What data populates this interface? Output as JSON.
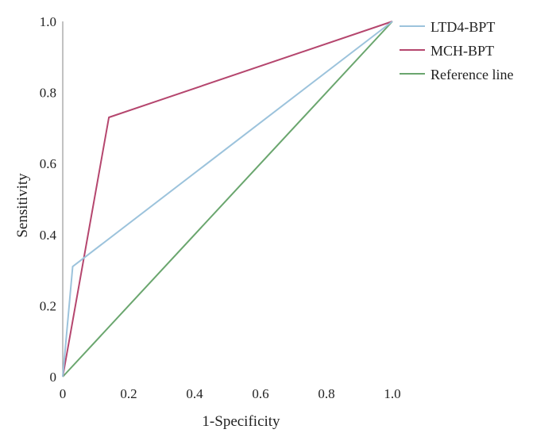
{
  "chart_data": {
    "type": "line",
    "xlabel": "1-Specificity",
    "ylabel": "Sensitivity",
    "xlim": [
      0,
      1
    ],
    "ylim": [
      0,
      1
    ],
    "x_ticks": [
      "0",
      "0.2",
      "0.4",
      "0.6",
      "0.8",
      "1.0"
    ],
    "y_ticks": [
      "0",
      "0.2",
      "0.4",
      "0.6",
      "0.8",
      "1.0"
    ],
    "grid": false,
    "legend_position": "top-right",
    "series": [
      {
        "name": "LTD4-BPT",
        "color": "#9cc3dc",
        "x": [
          0,
          0.03,
          1.0
        ],
        "y": [
          0,
          0.31,
          1.0
        ]
      },
      {
        "name": "MCH-BPT",
        "color": "#b5466e",
        "x": [
          0,
          0.14,
          1.0
        ],
        "y": [
          0,
          0.73,
          1.0
        ]
      },
      {
        "name": "Reference line",
        "color": "#6aa66e",
        "x": [
          0,
          1.0
        ],
        "y": [
          0,
          1.0
        ]
      }
    ]
  }
}
